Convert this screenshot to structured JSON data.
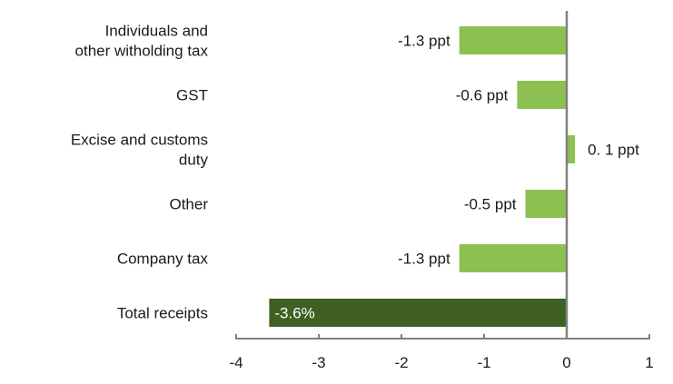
{
  "chart_data": {
    "type": "bar",
    "orientation": "horizontal",
    "categories": [
      [
        "Individuals and",
        "other witholding tax"
      ],
      [
        "GST"
      ],
      [
        "Excise and customs",
        "duty"
      ],
      [
        "Other"
      ],
      [
        "Company tax"
      ],
      [
        "Total receipts"
      ]
    ],
    "values": [
      -1.3,
      -0.6,
      0.1,
      -0.5,
      -1.3,
      -3.6
    ],
    "data_labels": [
      "-1.3 ppt",
      "-0.6 ppt",
      "0. 1 ppt",
      "-0.5 ppt",
      "-1.3 ppt",
      "-3.6%"
    ],
    "xlim": [
      -4,
      1
    ],
    "x_ticks": [
      "-4",
      "-3",
      "-2",
      "-1",
      "0",
      "1"
    ],
    "x_tick_values": [
      -4,
      -3,
      -2,
      -1,
      0,
      1
    ],
    "grid": false,
    "legend": "none",
    "colors": {
      "component_bar": "#8cc152",
      "total_bar": "#3f5f23",
      "axis": "#808080",
      "text": "#1a1a1a",
      "total_label_text": "#ffffff"
    }
  }
}
